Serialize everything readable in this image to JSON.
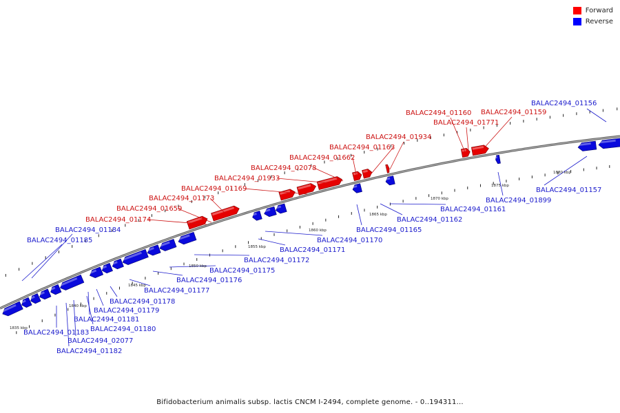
{
  "legend": [
    {
      "label": "Forward",
      "color": "#ff0000"
    },
    {
      "label": "Reverse",
      "color": "#0000ff"
    }
  ],
  "caption": "Bifidobacterium animalis subsp. lactis CNCM I-2494, complete genome. - 0..194311...",
  "colors": {
    "forward": "#e60000",
    "reverse": "#0a0adc",
    "backbone": "#888888",
    "forward_label": "#cc1111",
    "reverse_label": "#1a1acc"
  },
  "scale_labels": [
    "1835 kbp",
    "1840 kbp",
    "1845 kbp",
    "1850 kbp",
    "1855 kbp",
    "1860 kbp",
    "1865 kbp",
    "1870 kbp",
    "1875 kbp",
    "1880 kbp"
  ],
  "forward_labels": [
    "BALAC2494_01174",
    "BALAC2494_01659",
    "BALAC2494_01173",
    "BALAC2494_01169",
    "BALAC2494_01933",
    "BALAC2494_02078",
    "BALAC2494_01662",
    "BALAC2494_01163",
    "BALAC2494_01934",
    "BALAC2494_01160",
    "BALAC2494_01771",
    "BALAC2494_01159"
  ],
  "reverse_labels": [
    "BALAC2494_01184",
    "BALAC2494_01185",
    "BALAC2494_01183",
    "BALAC2494_02077",
    "BALAC2494_01182",
    "BALAC2494_01181",
    "BALAC2494_01180",
    "BALAC2494_01179",
    "BALAC2494_01178",
    "BALAC2494_01177",
    "BALAC2494_01176",
    "BALAC2494_01175",
    "BALAC2494_01172",
    "BALAC2494_01171",
    "BALAC2494_01170",
    "BALAC2494_01165",
    "BALAC2494_01162",
    "BALAC2494_01161",
    "BALAC2494_01899",
    "BALAC2494_01157",
    "BALAC2494_01156"
  ]
}
